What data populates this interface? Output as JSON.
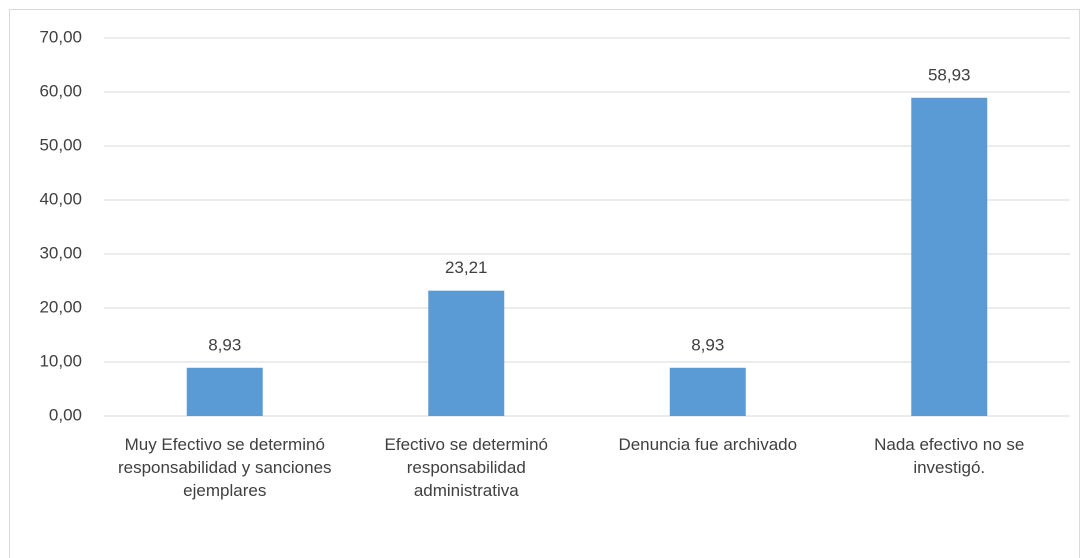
{
  "chart_data": {
    "type": "bar",
    "categories": [
      "Muy Efectivo se determinó responsabilidad y sanciones ejemplares",
      "Efectivo se determinó responsabilidad administrativa",
      "Denuncia fue archivado",
      "Nada efectivo no se investigó."
    ],
    "values": [
      8.93,
      23.21,
      8.93,
      58.93
    ],
    "value_labels": [
      "8,93",
      "23,21",
      "8,93",
      "58,93"
    ],
    "color": "#5b9bd5",
    "ylim": [
      0,
      70
    ],
    "yticks": [
      {
        "value": 0,
        "label": "0,00"
      },
      {
        "value": 10,
        "label": "10,00"
      },
      {
        "value": 20,
        "label": "20,00"
      },
      {
        "value": 30,
        "label": "30,00"
      },
      {
        "value": 40,
        "label": "40,00"
      },
      {
        "value": 50,
        "label": "50,00"
      },
      {
        "value": 60,
        "label": "60,00"
      },
      {
        "value": 70,
        "label": "70,00"
      }
    ],
    "grid": true
  }
}
